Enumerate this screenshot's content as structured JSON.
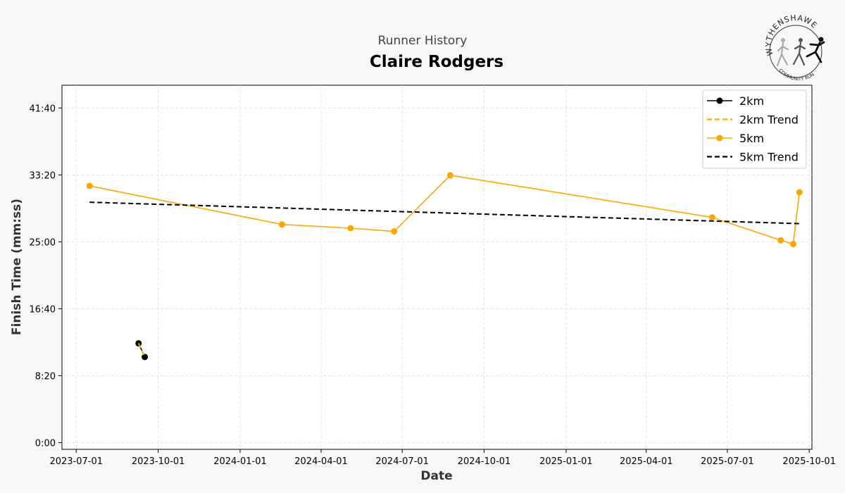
{
  "chart_data": {
    "type": "line",
    "subtitle": "Runner History",
    "title": "Claire Rodgers",
    "xlabel": "Date",
    "ylabel": "Finish Time (mm:ss)",
    "x_ticks": [
      "2023-07-01",
      "2023-10-01",
      "2024-01-01",
      "2024-04-01",
      "2024-07-01",
      "2024-10-01",
      "2025-01-01",
      "2025-04-01",
      "2025-07-01",
      "2025-10-01"
    ],
    "y_ticks_seconds": [
      0,
      500,
      1000,
      1500,
      2000,
      2500
    ],
    "y_tick_labels": [
      "0:00",
      "8:20",
      "16:40",
      "25:00",
      "33:20",
      "41:40"
    ],
    "xlim": [
      "2023-06-15",
      "2025-10-04"
    ],
    "ylim_seconds": [
      -50,
      2670
    ],
    "grid": true,
    "legend_position": "top-right",
    "series": [
      {
        "name": "2km",
        "color": "#000000",
        "style": "solid-marker",
        "points": [
          {
            "date": "2023-09-09",
            "seconds": 742
          },
          {
            "date": "2023-09-16",
            "seconds": 640
          }
        ]
      },
      {
        "name": "2km Trend",
        "color": "#FFA500",
        "style": "dashed",
        "points": [
          {
            "date": "2023-09-09",
            "seconds": 742
          },
          {
            "date": "2023-09-16",
            "seconds": 640
          }
        ]
      },
      {
        "name": "5km",
        "color": "#FFA500",
        "style": "solid-marker",
        "points": [
          {
            "date": "2023-07-16",
            "seconds": 1918
          },
          {
            "date": "2024-02-17",
            "seconds": 1630
          },
          {
            "date": "2024-05-04",
            "seconds": 1602
          },
          {
            "date": "2024-06-22",
            "seconds": 1578
          },
          {
            "date": "2024-08-24",
            "seconds": 1997
          },
          {
            "date": "2025-06-14",
            "seconds": 1683
          },
          {
            "date": "2025-08-30",
            "seconds": 1512
          },
          {
            "date": "2025-09-13",
            "seconds": 1483
          },
          {
            "date": "2025-09-20",
            "seconds": 1870
          }
        ]
      },
      {
        "name": "5km Trend",
        "color": "#000000",
        "style": "dashed",
        "points": [
          {
            "date": "2023-07-16",
            "seconds": 1796
          },
          {
            "date": "2025-09-20",
            "seconds": 1636
          }
        ]
      }
    ]
  },
  "logo": {
    "top_text": "WYTHENSHAWE",
    "bottom_text": "COMMUNITY RUN"
  }
}
